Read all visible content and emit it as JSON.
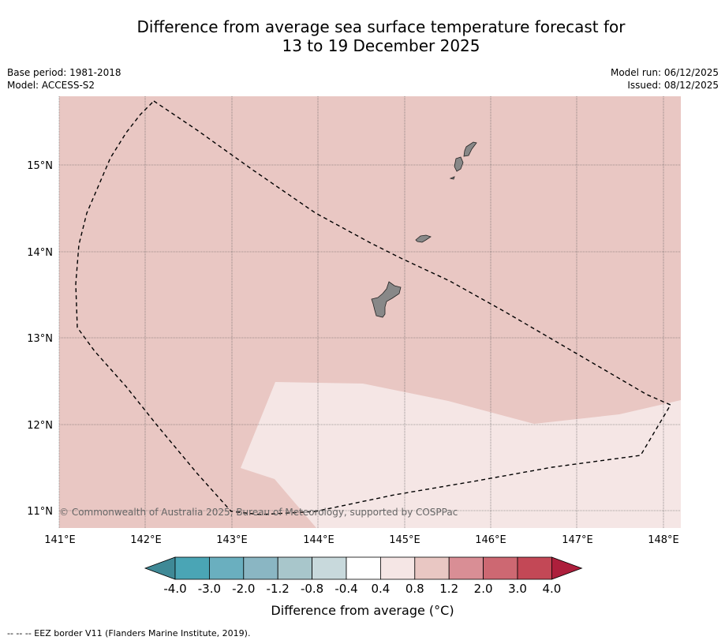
{
  "title_line1": "Difference from average sea surface temperature forecast for",
  "title_line2": "13 to 19 December 2025",
  "base_period": "Base period: 1981-2018",
  "model": "Model: ACCESS-S2",
  "model_run": "Model run: 06/12/2025",
  "issued": "Issued: 08/12/2025",
  "copyright": "© Commonwealth of Australia 2025, Bureau of Meteorology, supported by COSPPac",
  "colorbar_title": "Difference from average (°C)",
  "colorbar_ticks": [
    "-4.0",
    "-3.0",
    "-2.0",
    "-1.2",
    "-0.8",
    "-0.4",
    "0.4",
    "0.8",
    "1.2",
    "2.0",
    "3.0",
    "4.0"
  ],
  "colorbar_colors": [
    "#4aa5b5",
    "#6aafbf",
    "#8ab6c3",
    "#a8c6cb",
    "#c8d9dc",
    "#ffffff",
    "#f5e6e5",
    "#e9c7c3",
    "#d98e95",
    "#cd6872",
    "#c34856"
  ],
  "colorbar_extend_low": "#3f8996",
  "colorbar_extend_high": "#ad1f3c",
  "lon_labels": [
    "141°E",
    "142°E",
    "143°E",
    "144°E",
    "145°E",
    "146°E",
    "147°E",
    "148°E"
  ],
  "lat_labels": [
    "15°N",
    "14°N",
    "13°N",
    "12°N",
    "11°N"
  ],
  "footnote": "--  --  -- EEZ border V11 (Flanders Marine Institute, 2019).",
  "map_colors": {
    "bg": "#e9c7c3",
    "light": "#f5e6e5",
    "land": "#888888"
  }
}
